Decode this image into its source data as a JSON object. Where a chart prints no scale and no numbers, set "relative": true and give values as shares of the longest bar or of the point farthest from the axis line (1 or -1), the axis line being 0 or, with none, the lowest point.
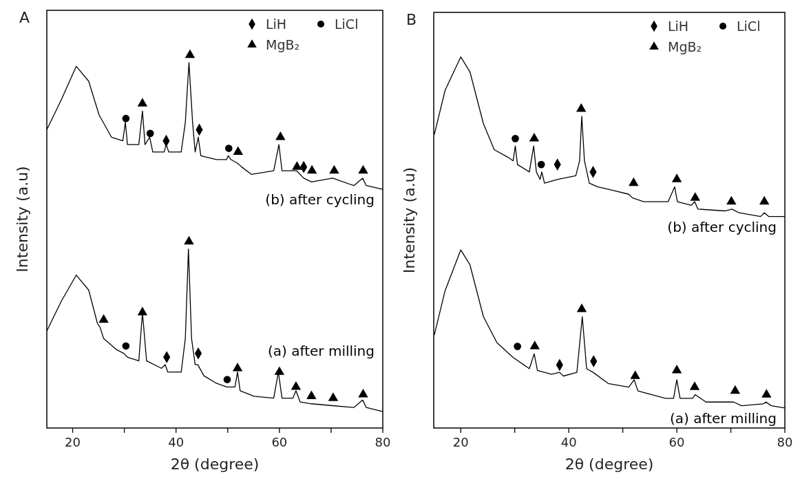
{
  "chart_data": [
    {
      "type": "line",
      "title": "A",
      "xlabel": "2θ (degree)",
      "ylabel": "Intensity (a.u)",
      "relative": true,
      "xlim": [
        15,
        80
      ],
      "xticks": [
        20,
        {
          "value": 30,
          "label": null
        },
        40,
        {
          "value": 50,
          "label": null
        },
        60,
        {
          "value": 70,
          "label": null
        },
        80
      ],
      "legend": "top right",
      "grid": false,
      "marker": "none",
      "line_style": "solid",
      "series": [
        {
          "name": "(b) after cycling",
          "color": "#000000",
          "x": [
            15,
            17.8,
            20.7,
            23.1,
            25.1,
            27.5,
            29.7,
            30.2,
            30.6,
            32.8,
            33.5,
            34.0,
            34.9,
            35.5,
            37.7,
            38.1,
            38.6,
            41.0,
            41.8,
            42.5,
            43.2,
            43.7,
            44.3,
            44.8,
            47.8,
            49.8,
            50.1,
            50.6,
            51.9,
            52.7,
            54.6,
            58.9,
            59.9,
            60.5,
            63.3,
            64.7,
            66.2,
            70.3,
            74.4,
            76.1,
            76.8,
            80
          ],
          "values": [
            0.8,
            0.88,
            0.97,
            0.93,
            0.84,
            0.78,
            0.77,
            0.82,
            0.76,
            0.76,
            0.85,
            0.76,
            0.78,
            0.74,
            0.74,
            0.76,
            0.74,
            0.74,
            0.82,
            0.98,
            0.82,
            0.74,
            0.78,
            0.73,
            0.72,
            0.72,
            0.73,
            0.72,
            0.71,
            0.7,
            0.68,
            0.69,
            0.76,
            0.69,
            0.69,
            0.67,
            0.66,
            0.67,
            0.65,
            0.67,
            0.65,
            0.64
          ]
        },
        {
          "name": "(a) after milling",
          "color": "#000000",
          "x": [
            15,
            17.8,
            20.7,
            23.1,
            24.8,
            25.3,
            26.0,
            28.5,
            29.9,
            30.6,
            32.8,
            33.5,
            34.3,
            37.2,
            37.9,
            38.4,
            41.0,
            41.8,
            42.4,
            43.0,
            43.7,
            44.2,
            45.4,
            47.8,
            49.8,
            51.4,
            51.9,
            52.4,
            55.1,
            58.9,
            59.8,
            60.5,
            62.6,
            63.2,
            64.0,
            66.2,
            70.3,
            74.4,
            76.1,
            76.8,
            80
          ],
          "values": [
            0.26,
            0.34,
            0.41,
            0.37,
            0.28,
            0.27,
            0.24,
            0.21,
            0.2,
            0.19,
            0.18,
            0.31,
            0.18,
            0.16,
            0.17,
            0.15,
            0.15,
            0.24,
            0.48,
            0.24,
            0.17,
            0.17,
            0.14,
            0.12,
            0.11,
            0.11,
            0.15,
            0.1,
            0.085,
            0.08,
            0.15,
            0.08,
            0.08,
            0.1,
            0.07,
            0.065,
            0.06,
            0.055,
            0.075,
            0.055,
            0.044
          ]
        },
        {
          "name": "LiH",
          "type": "scatter",
          "marker": "diamond",
          "color": "#000000",
          "x": [
            38.1,
            44.5,
            64.7,
            38.2,
            44.3
          ],
          "values": [
            0.77,
            0.8,
            0.7,
            0.19,
            0.2
          ]
        },
        {
          "name": "LiCl",
          "type": "scatter",
          "marker": "circle",
          "color": "#000000",
          "x": [
            30.3,
            35.0,
            50.2,
            30.3,
            49.9
          ],
          "values": [
            0.83,
            0.79,
            0.75,
            0.22,
            0.13
          ]
        },
        {
          "name": "MgB₂",
          "type": "scatter",
          "marker": "triangle",
          "color": "#000000",
          "x": [
            33.5,
            42.7,
            52.0,
            60.2,
            63.4,
            66.3,
            70.6,
            76.2,
            26.0,
            33.5,
            42.5,
            51.9,
            60.0,
            63.2,
            66.2,
            70.4,
            76.2
          ],
          "values": [
            0.87,
            1.0,
            0.74,
            0.78,
            0.7,
            0.69,
            0.69,
            0.69,
            0.29,
            0.31,
            0.5,
            0.16,
            0.15,
            0.11,
            0.085,
            0.08,
            0.09
          ]
        }
      ]
    },
    {
      "type": "line",
      "title": "B",
      "xlabel": "2θ (degree)",
      "ylabel": "Intensity (a.u)",
      "relative": true,
      "xlim": [
        15,
        80
      ],
      "xticks": [
        20,
        {
          "value": 30,
          "label": null
        },
        40,
        {
          "value": 50,
          "label": null
        },
        60,
        {
          "value": 70,
          "label": null
        },
        80
      ],
      "legend": "top right",
      "grid": false,
      "marker": "none",
      "line_style": "solid",
      "series": [
        {
          "name": "(b) after cycling",
          "color": "#000000",
          "x": [
            15.1,
            17.1,
            20,
            21.7,
            24.2,
            26.2,
            28.7,
            29.7,
            30.1,
            30.5,
            32.7,
            33.5,
            34.0,
            34.7,
            35.0,
            35.5,
            38.0,
            41.3,
            42.0,
            42.4,
            42.9,
            43.8,
            45.3,
            48.3,
            51.1,
            51.8,
            53.9,
            58.4,
            59.6,
            60.1,
            62.7,
            63.3,
            63.9,
            68.9,
            70.2,
            71.5,
            75.5,
            76.2,
            77.0,
            80
          ],
          "values": [
            0.79,
            0.91,
            1.0,
            0.96,
            0.82,
            0.75,
            0.73,
            0.72,
            0.76,
            0.71,
            0.69,
            0.76,
            0.69,
            0.67,
            0.69,
            0.66,
            0.67,
            0.68,
            0.72,
            0.84,
            0.72,
            0.66,
            0.65,
            0.64,
            0.63,
            0.62,
            0.61,
            0.61,
            0.65,
            0.61,
            0.6,
            0.61,
            0.59,
            0.585,
            0.59,
            0.58,
            0.57,
            0.58,
            0.57,
            0.57
          ]
        },
        {
          "name": "(a) after milling",
          "color": "#000000",
          "x": [
            15.1,
            17.1,
            20,
            21.7,
            24.2,
            26.7,
            29.7,
            32.7,
            33.6,
            34.2,
            36.8,
            38.3,
            39.0,
            41.5,
            42.5,
            43.3,
            44.5,
            47.3,
            51.1,
            52.1,
            52.8,
            57.9,
            59.4,
            60.0,
            60.6,
            62.9,
            63.4,
            65.4,
            70.5,
            72.0,
            76.0,
            76.5,
            77.5,
            80
          ],
          "values": [
            0.25,
            0.37,
            0.48,
            0.44,
            0.3,
            0.23,
            0.19,
            0.16,
            0.2,
            0.155,
            0.145,
            0.15,
            0.14,
            0.15,
            0.3,
            0.16,
            0.15,
            0.12,
            0.11,
            0.13,
            0.1,
            0.08,
            0.08,
            0.13,
            0.08,
            0.08,
            0.09,
            0.07,
            0.07,
            0.06,
            0.065,
            0.07,
            0.06,
            0.054
          ]
        },
        {
          "name": "LiH",
          "type": "scatter",
          "marker": "diamond",
          "color": "#000000",
          "x": [
            37.9,
            44.5,
            38.3,
            44.6
          ],
          "values": [
            0.71,
            0.69,
            0.17,
            0.18
          ]
        },
        {
          "name": "LiCl",
          "type": "scatter",
          "marker": "circle",
          "color": "#000000",
          "x": [
            30.1,
            34.9,
            30.5
          ],
          "values": [
            0.78,
            0.71,
            0.22
          ]
        },
        {
          "name": "MgB₂",
          "type": "scatter",
          "marker": "triangle",
          "color": "#000000",
          "x": [
            33.6,
            42.3,
            52.0,
            60.0,
            63.4,
            70.1,
            76.2,
            33.7,
            42.4,
            52.3,
            60.0,
            63.3,
            70.8,
            76.6
          ],
          "values": [
            0.78,
            0.86,
            0.66,
            0.67,
            0.62,
            0.61,
            0.61,
            0.22,
            0.32,
            0.14,
            0.155,
            0.11,
            0.1,
            0.09
          ]
        }
      ]
    }
  ]
}
